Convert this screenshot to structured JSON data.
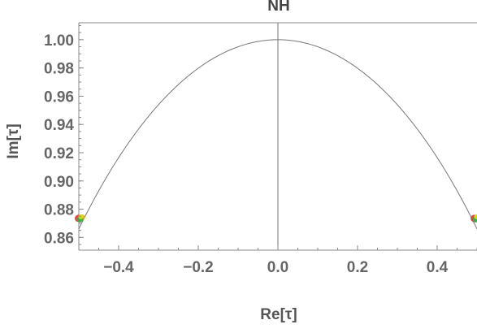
{
  "chart_data": {
    "type": "line",
    "title": "NH",
    "xlabel": "Re[τ]",
    "ylabel": "Im[τ]",
    "xlim": [
      -0.5,
      0.5
    ],
    "ylim": [
      0.851,
      1.012
    ],
    "x_ticks": [
      -0.4,
      -0.2,
      0.0,
      0.2,
      0.4
    ],
    "x_tick_labels": [
      "−0.4",
      "−0.2",
      "0.0",
      "0.2",
      "0.4"
    ],
    "y_ticks": [
      0.86,
      0.88,
      0.9,
      0.92,
      0.94,
      0.96,
      0.98,
      1.0
    ],
    "y_tick_labels": [
      "0.86",
      "0.88",
      "0.90",
      "0.92",
      "0.94",
      "0.96",
      "0.98",
      "1.00"
    ],
    "curves": [
      {
        "kind": "unit-circle-arc",
        "formula": "y = sqrt(1 - x^2)",
        "color": "#777777"
      },
      {
        "kind": "vertical-line",
        "x": 0.0,
        "color": "#777777"
      }
    ],
    "points": [
      {
        "x": -0.497,
        "y": 0.8735,
        "colors": [
          "#e8302a",
          "#f2a21c",
          "#2fb24a",
          "#d4e21a"
        ]
      },
      {
        "x": 0.497,
        "y": 0.8735,
        "colors": [
          "#e8302a",
          "#f2a21c",
          "#2fb24a",
          "#d4e21a"
        ]
      }
    ],
    "grid": false,
    "frame_color": "#888888"
  }
}
